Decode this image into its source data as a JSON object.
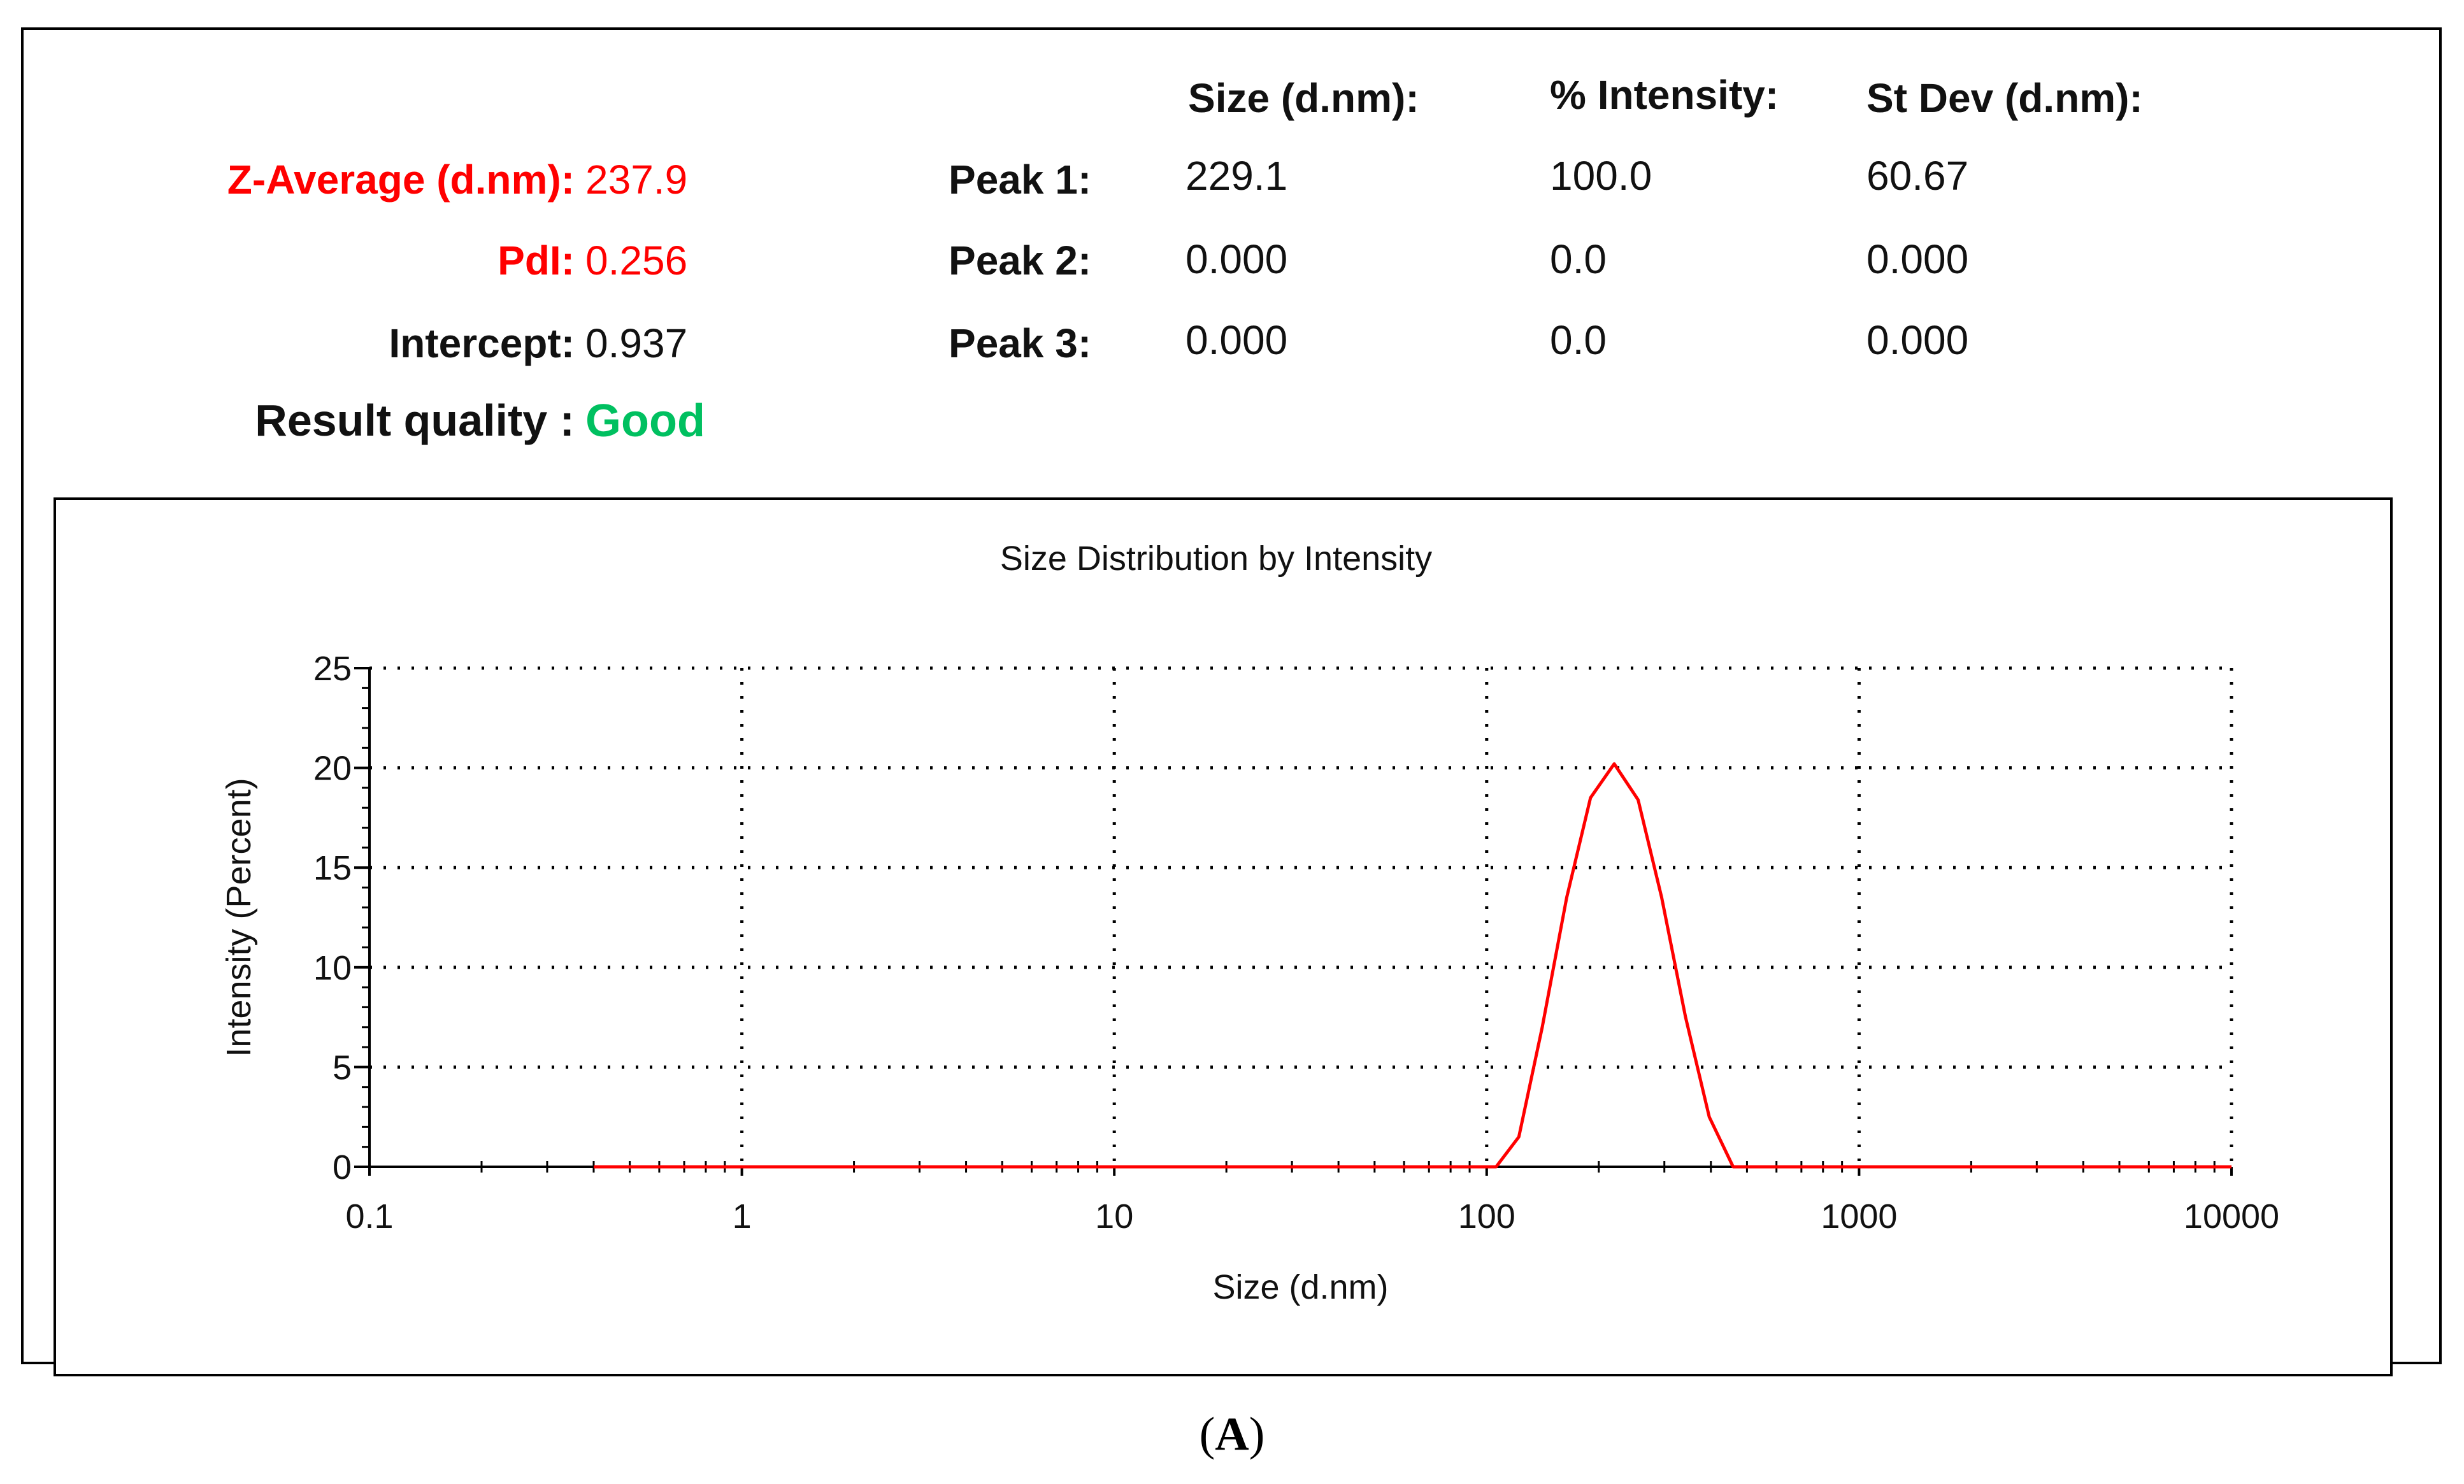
{
  "summary": {
    "z_average_label": "Z-Average (d.nm):",
    "z_average_value": "237.9",
    "pdi_label": "PdI:",
    "pdi_value": "0.256",
    "intercept_label": "Intercept:",
    "intercept_value": "0.937",
    "quality_label": "Result quality :",
    "quality_value": "Good"
  },
  "peaks": {
    "headers": [
      "Size (d.nm):",
      "% Intensity:",
      "St Dev (d.nm):"
    ],
    "rows": [
      {
        "label": "Peak 1:",
        "size": "229.1",
        "intensity": "100.0",
        "stdev": "60.67"
      },
      {
        "label": "Peak 2:",
        "size": "0.000",
        "intensity": "0.0",
        "stdev": "0.000"
      },
      {
        "label": "Peak 3:",
        "size": "0.000",
        "intensity": "0.0",
        "stdev": "0.000"
      }
    ]
  },
  "colors": {
    "highlight": "#ff0000",
    "good": "#00c060",
    "curve": "#ff0000"
  },
  "chart_data": {
    "type": "line",
    "title": "Size Distribution by Intensity",
    "xlabel": "Size (d.nm)",
    "ylabel": "Intensity (Percent)",
    "xscale": "log",
    "xlim": [
      0.1,
      10000
    ],
    "ylim": [
      0,
      25
    ],
    "x_ticks": [
      0.1,
      1,
      10,
      100,
      1000,
      10000
    ],
    "x_tick_labels": [
      "0.1",
      "1",
      "10",
      "100",
      "1000",
      "10000"
    ],
    "y_ticks": [
      0,
      5,
      10,
      15,
      20,
      25
    ],
    "y_tick_labels": [
      "0",
      "5",
      "10",
      "15",
      "20",
      "25"
    ],
    "grid": true,
    "series": [
      {
        "name": "Intensity",
        "x": [
          0.4,
          1,
          10,
          100,
          106,
          122,
          141,
          164,
          190,
          220,
          255,
          295,
          342,
          396,
          459,
          1000,
          10000
        ],
        "y": [
          0,
          0,
          0,
          0,
          0,
          1.5,
          7,
          13.5,
          18.5,
          20.2,
          18.4,
          13.5,
          7.5,
          2.5,
          0,
          0,
          0
        ]
      }
    ]
  }
}
